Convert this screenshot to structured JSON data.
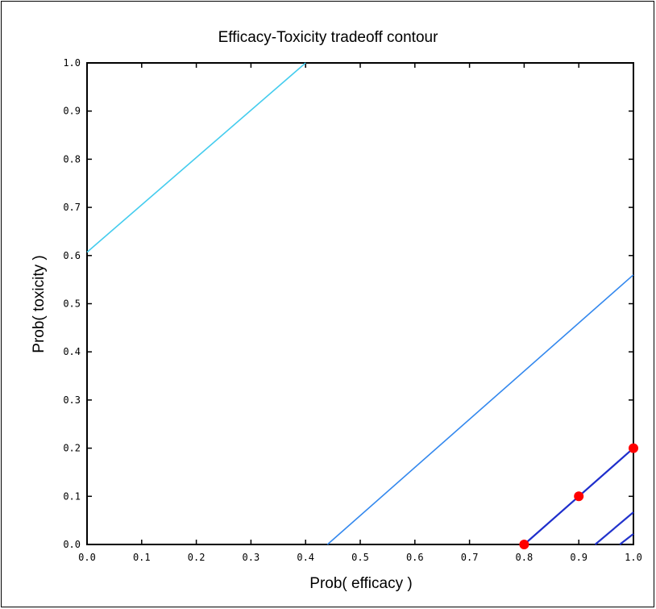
{
  "chart_data": {
    "type": "line",
    "title": "Efficacy-Toxicity tradeoff contour",
    "xlabel": "Prob( efficacy )",
    "ylabel": "Prob( toxicity )",
    "xlim": [
      0,
      1
    ],
    "ylim": [
      0,
      1
    ],
    "x_ticks": [
      "0.0",
      "0.1",
      "0.2",
      "0.3",
      "0.4",
      "0.5",
      "0.6",
      "0.7",
      "0.8",
      "0.9",
      "1.0"
    ],
    "y_ticks": [
      "0.0",
      "0.1",
      "0.2",
      "0.3",
      "0.4",
      "0.5",
      "0.6",
      "0.7",
      "0.8",
      "0.9",
      "1.0"
    ],
    "grid": false,
    "series": [
      {
        "color": "#44ccee",
        "x": [
          0.0,
          0.4
        ],
        "y": [
          0.607,
          1.0
        ]
      },
      {
        "color": "#3388ee",
        "x": [
          0.44,
          1.0
        ],
        "y": [
          0.0,
          0.56
        ]
      },
      {
        "color": "#1e2ecc",
        "x": [
          0.8,
          1.0
        ],
        "y": [
          0.0,
          0.2
        ]
      },
      {
        "color": "#2233cc",
        "x": [
          0.93,
          1.0
        ],
        "y": [
          0.0,
          0.067
        ]
      },
      {
        "color": "#2233cc",
        "x": [
          0.975,
          1.0
        ],
        "y": [
          0.0,
          0.022
        ]
      }
    ],
    "points": {
      "color": "#ff0000",
      "x": [
        0.8,
        0.9,
        1.0
      ],
      "y": [
        0.0,
        0.1,
        0.2
      ]
    }
  }
}
